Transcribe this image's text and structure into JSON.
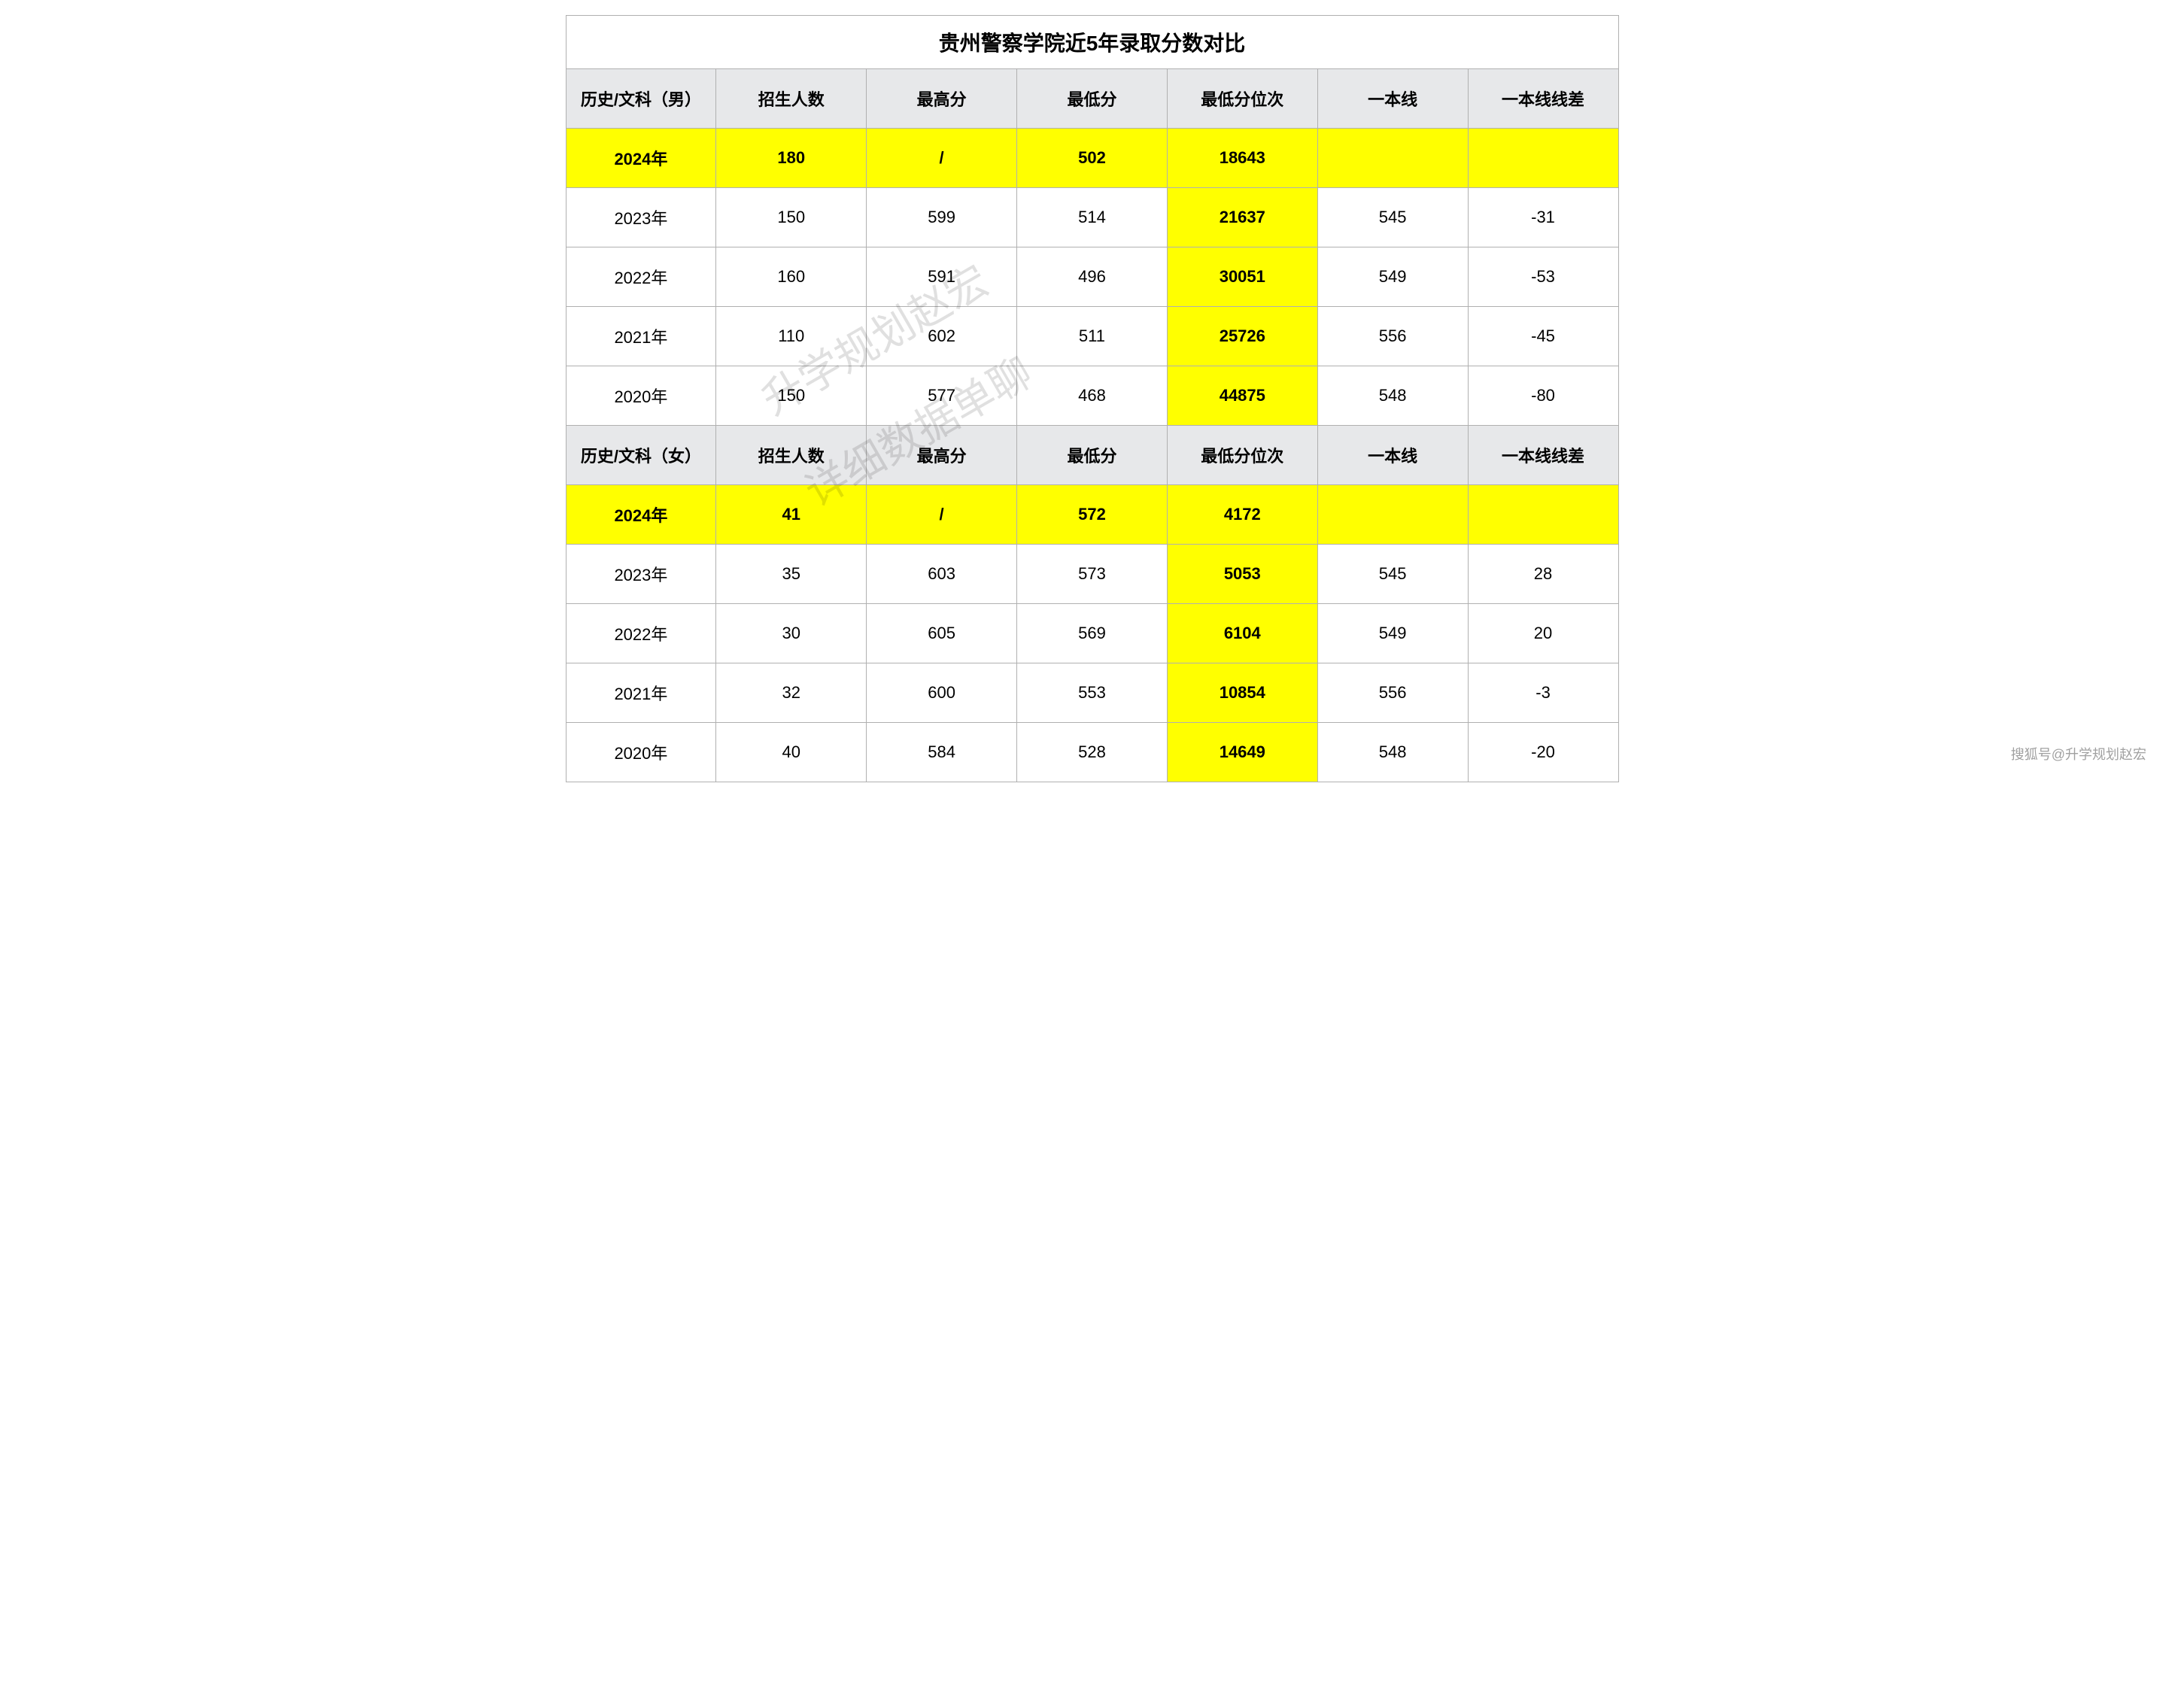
{
  "title": "贵州警察学院近5年录取分数对比",
  "columns": {
    "c0_male": "历史/文科（男）",
    "c0_female": "历史/文科（女）",
    "c1": "招生人数",
    "c2": "最高分",
    "c3": "最低分",
    "c4": "最低分位次",
    "c5": "一本线",
    "c6": "一本线线差"
  },
  "male_rows": [
    {
      "year": "2024年",
      "enroll": "180",
      "max": "/",
      "min": "502",
      "rank": "18643",
      "line": "",
      "diff": "",
      "highlight": true
    },
    {
      "year": "2023年",
      "enroll": "150",
      "max": "599",
      "min": "514",
      "rank": "21637",
      "line": "545",
      "diff": "-31",
      "highlight": false
    },
    {
      "year": "2022年",
      "enroll": "160",
      "max": "591",
      "min": "496",
      "rank": "30051",
      "line": "549",
      "diff": "-53",
      "highlight": false
    },
    {
      "year": "2021年",
      "enroll": "110",
      "max": "602",
      "min": "511",
      "rank": "25726",
      "line": "556",
      "diff": "-45",
      "highlight": false
    },
    {
      "year": "2020年",
      "enroll": "150",
      "max": "577",
      "min": "468",
      "rank": "44875",
      "line": "548",
      "diff": "-80",
      "highlight": false
    }
  ],
  "female_rows": [
    {
      "year": "2024年",
      "enroll": "41",
      "max": "/",
      "min": "572",
      "rank": "4172",
      "line": "",
      "diff": "",
      "highlight": true
    },
    {
      "year": "2023年",
      "enroll": "35",
      "max": "603",
      "min": "573",
      "rank": "5053",
      "line": "545",
      "diff": "28",
      "highlight": false
    },
    {
      "year": "2022年",
      "enroll": "30",
      "max": "605",
      "min": "569",
      "rank": "6104",
      "line": "549",
      "diff": "20",
      "highlight": false
    },
    {
      "year": "2021年",
      "enroll": "32",
      "max": "600",
      "min": "553",
      "rank": "10854",
      "line": "556",
      "diff": "-3",
      "highlight": false
    },
    {
      "year": "2020年",
      "enroll": "40",
      "max": "584",
      "min": "528",
      "rank": "14649",
      "line": "548",
      "diff": "-20",
      "highlight": false
    }
  ],
  "watermark1": "升学规划赵宏",
  "watermark2": "详细数据单聊",
  "attribution": "搜狐号@升学规划赵宏",
  "colors": {
    "highlight_bg": "#ffff00",
    "header_bg": "#e7e8ea",
    "border": "#b0b0b0",
    "watermark": "rgba(0,0,0,0.12)"
  }
}
